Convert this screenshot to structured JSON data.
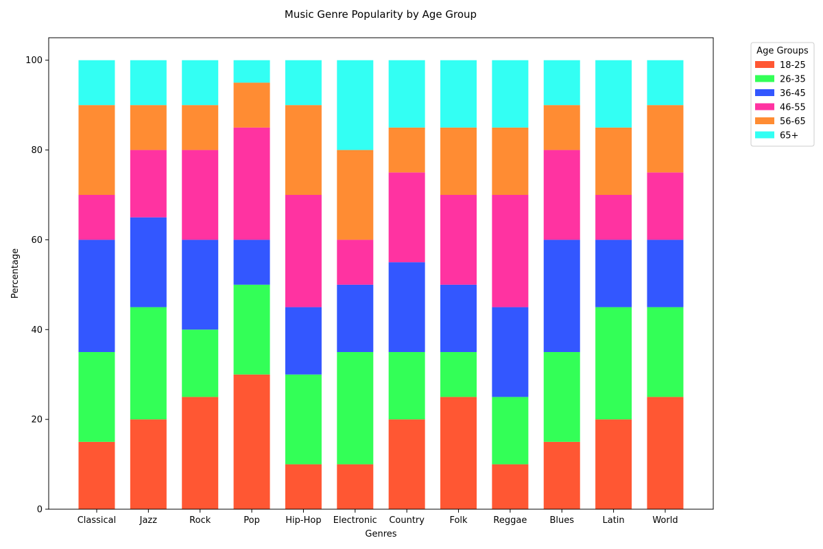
{
  "chart_data": {
    "type": "bar",
    "stacked": true,
    "title": "Music Genre Popularity by Age Group",
    "xlabel": "Genres",
    "ylabel": "Percentage",
    "ylim": [
      0,
      105
    ],
    "yticks": [
      0,
      20,
      40,
      60,
      80,
      100
    ],
    "grid": false,
    "legend_title": "Age Groups",
    "legend_position": "outside-top-right",
    "categories": [
      "Classical",
      "Jazz",
      "Rock",
      "Pop",
      "Hip-Hop",
      "Electronic",
      "Country",
      "Folk",
      "Reggae",
      "Blues",
      "Latin",
      "World"
    ],
    "series": [
      {
        "name": "18-25",
        "color": "#ff5733",
        "values": [
          15,
          20,
          25,
          30,
          10,
          10,
          20,
          25,
          10,
          15,
          20,
          25
        ]
      },
      {
        "name": "26-35",
        "color": "#33ff57",
        "values": [
          20,
          25,
          15,
          20,
          20,
          25,
          15,
          10,
          15,
          20,
          25,
          20
        ]
      },
      {
        "name": "36-45",
        "color": "#3357ff",
        "values": [
          25,
          20,
          20,
          10,
          15,
          15,
          20,
          15,
          20,
          25,
          15,
          15
        ]
      },
      {
        "name": "46-55",
        "color": "#ff33a1",
        "values": [
          10,
          15,
          20,
          25,
          25,
          10,
          20,
          20,
          25,
          20,
          10,
          15
        ]
      },
      {
        "name": "56-65",
        "color": "#ff8c33",
        "values": [
          20,
          10,
          10,
          10,
          20,
          20,
          10,
          15,
          15,
          10,
          15,
          15
        ]
      },
      {
        "name": "65+",
        "color": "#33fff3",
        "values": [
          10,
          10,
          10,
          5,
          10,
          20,
          15,
          15,
          15,
          10,
          15,
          10
        ]
      }
    ]
  }
}
